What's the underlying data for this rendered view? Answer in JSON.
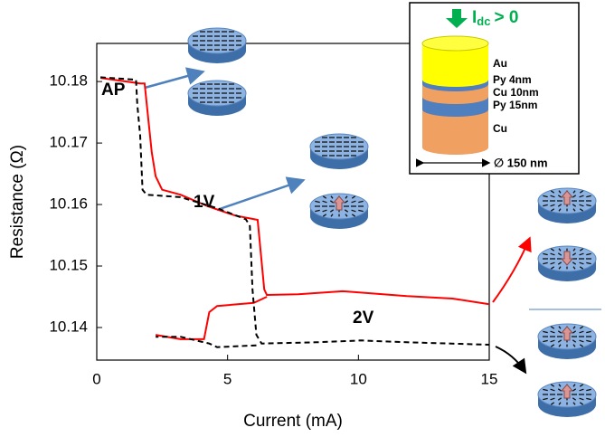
{
  "chart_data": {
    "type": "line",
    "xlabel": "Current (mA)",
    "ylabel": "Resistance (Ω)",
    "xlim": [
      0,
      15
    ],
    "xticks": [
      0,
      5,
      10,
      15
    ],
    "ylim": [
      10.1347,
      10.1862
    ],
    "yticks": [
      10.14,
      10.15,
      10.16,
      10.17,
      10.18
    ],
    "series": [
      {
        "color": "#ff0000",
        "style": "solid",
        "x": [
          0.14,
          1.66,
          1.83,
          2.0,
          2.1,
          2.25,
          2.5,
          3.2,
          4.25,
          5.3,
          6.15,
          6.4,
          6.5,
          7.7,
          9.4,
          11.85,
          13.6,
          15,
          null,
          2.25,
          3.2,
          4.1,
          4.3,
          4.6,
          6.0,
          6.5
        ],
        "values": [
          10.1806,
          10.1797,
          10.1797,
          10.1726,
          10.1685,
          10.1646,
          10.1624,
          10.1616,
          10.1597,
          10.1582,
          10.1575,
          10.1462,
          10.1453,
          10.1454,
          10.1459,
          10.1451,
          10.1447,
          10.1438,
          null,
          10.1388,
          10.1381,
          10.1381,
          10.1425,
          10.1435,
          10.144,
          10.145
        ]
      },
      {
        "color": "#000000",
        "style": "dashed",
        "x": [
          0.14,
          1.5,
          1.55,
          1.66,
          1.75,
          1.9,
          3.2,
          4.6,
          5.7,
          5.85,
          5.95,
          6.1,
          6.3,
          8.4,
          10.1,
          11.85,
          15,
          null,
          6.1,
          4.6,
          4.3,
          3.2,
          2.25
        ],
        "values": [
          10.1807,
          10.1803,
          10.1763,
          10.1712,
          10.1624,
          10.1616,
          10.1612,
          10.1594,
          10.1576,
          10.1565,
          10.1462,
          10.1388,
          10.1374,
          10.1376,
          10.1379,
          10.1376,
          10.1372,
          null,
          10.1371,
          10.1368,
          10.1374,
          10.1385,
          10.1385
        ]
      }
    ],
    "annotations": [
      "AP",
      "1V",
      "2V"
    ],
    "inset": {
      "current": "I",
      "current_sub": "dc",
      "relation": "> 0",
      "layers": [
        "Au",
        "Py 4nm",
        "Cu 10nm",
        "Py 15nm",
        "Cu"
      ],
      "diameter": "∅ 150 nm"
    }
  }
}
